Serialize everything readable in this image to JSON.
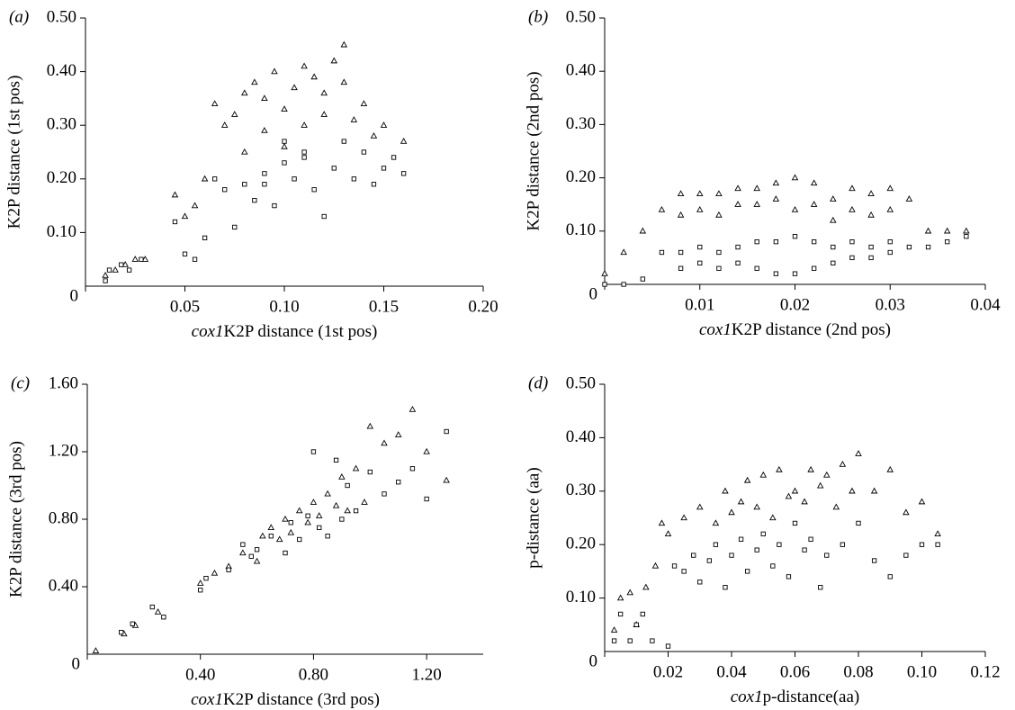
{
  "chart_data": [
    {
      "type": "scatter",
      "panel": "(a)",
      "xlabel_prefix": "cox1",
      "xlabel": "K2P distance (1st pos)",
      "ylabel": "K2P distance (1st pos)",
      "xlim": [
        0,
        0.2
      ],
      "ylim": [
        0,
        0.5
      ],
      "xticks": [
        0,
        0.05,
        {
          "value": 0.1,
          "label": "0.10"
        },
        0.15,
        {
          "value": 0.2,
          "label": "0.20"
        }
      ],
      "yticks": [
        {
          "value": 0.1,
          "label": "0.10"
        },
        {
          "value": 0.2,
          "label": "0.20"
        },
        {
          "value": 0.3,
          "label": "0.30"
        },
        {
          "value": 0.4,
          "label": "0.40"
        },
        {
          "value": 0.5,
          "label": "0.50"
        }
      ],
      "series": [
        {
          "marker": "triangle",
          "color": "#000000",
          "x": [
            0.01,
            0.015,
            0.02,
            0.025,
            0.03,
            0.045,
            0.05,
            0.055,
            0.06,
            0.065,
            0.07,
            0.075,
            0.08,
            0.085,
            0.09,
            0.095,
            0.1,
            0.105,
            0.11,
            0.115,
            0.12,
            0.125,
            0.13,
            0.135,
            0.14,
            0.145,
            0.15,
            0.16,
            0.09,
            0.1,
            0.11,
            0.12,
            0.08,
            0.13
          ],
          "values": [
            0.02,
            0.03,
            0.04,
            0.05,
            0.05,
            0.17,
            0.13,
            0.15,
            0.2,
            0.34,
            0.3,
            0.32,
            0.36,
            0.38,
            0.35,
            0.4,
            0.33,
            0.37,
            0.41,
            0.39,
            0.36,
            0.42,
            0.45,
            0.31,
            0.34,
            0.28,
            0.3,
            0.27,
            0.29,
            0.26,
            0.3,
            0.32,
            0.25,
            0.38
          ]
        },
        {
          "marker": "square",
          "color": "#000000",
          "x": [
            0.01,
            0.012,
            0.018,
            0.022,
            0.028,
            0.045,
            0.05,
            0.055,
            0.06,
            0.065,
            0.07,
            0.075,
            0.08,
            0.085,
            0.09,
            0.095,
            0.1,
            0.105,
            0.11,
            0.115,
            0.12,
            0.125,
            0.13,
            0.135,
            0.14,
            0.145,
            0.15,
            0.155,
            0.16,
            0.1,
            0.09,
            0.11
          ],
          "values": [
            0.01,
            0.03,
            0.04,
            0.03,
            0.05,
            0.12,
            0.06,
            0.05,
            0.09,
            0.2,
            0.18,
            0.11,
            0.19,
            0.16,
            0.21,
            0.15,
            0.23,
            0.2,
            0.25,
            0.18,
            0.13,
            0.22,
            0.27,
            0.2,
            0.25,
            0.19,
            0.22,
            0.24,
            0.21,
            0.27,
            0.19,
            0.24
          ]
        }
      ]
    },
    {
      "type": "scatter",
      "panel": "(b)",
      "xlabel_prefix": "cox1",
      "xlabel": "K2P distance (2nd pos)",
      "ylabel": "K2P distance (2nd pos)",
      "xlim": [
        0,
        0.04
      ],
      "ylim": [
        0,
        0.5
      ],
      "xticks": [
        0,
        0.01,
        0.02,
        0.03,
        0.04
      ],
      "yticks": [
        {
          "value": 0.1,
          "label": "0.10"
        },
        {
          "value": 0.2,
          "label": "0.20"
        },
        {
          "value": 0.3,
          "label": "0.30"
        },
        {
          "value": 0.4,
          "label": "0.40"
        },
        {
          "value": 0.5,
          "label": "0.50"
        }
      ],
      "series": [
        {
          "marker": "triangle",
          "color": "#000000",
          "x": [
            0,
            0.002,
            0.004,
            0.006,
            0.008,
            0.01,
            0.012,
            0.014,
            0.016,
            0.018,
            0.02,
            0.022,
            0.024,
            0.026,
            0.028,
            0.03,
            0.032,
            0.034,
            0.036,
            0.038,
            0.008,
            0.01,
            0.012,
            0.014,
            0.016,
            0.018,
            0.02,
            0.022,
            0.024,
            0.026,
            0.028,
            0.03
          ],
          "values": [
            0.02,
            0.06,
            0.1,
            0.14,
            0.17,
            0.17,
            0.17,
            0.18,
            0.18,
            0.19,
            0.2,
            0.19,
            0.16,
            0.18,
            0.17,
            0.18,
            0.16,
            0.1,
            0.1,
            0.1,
            0.13,
            0.14,
            0.13,
            0.15,
            0.15,
            0.16,
            0.14,
            0.15,
            0.12,
            0.14,
            0.13,
            0.14
          ]
        },
        {
          "marker": "square",
          "color": "#000000",
          "x": [
            0,
            0.002,
            0.004,
            0.006,
            0.008,
            0.01,
            0.012,
            0.014,
            0.016,
            0.018,
            0.02,
            0.022,
            0.024,
            0.026,
            0.028,
            0.03,
            0.032,
            0.034,
            0.036,
            0.038,
            0.008,
            0.01,
            0.012,
            0.014,
            0.016,
            0.018,
            0.02,
            0.022,
            0.024,
            0.026,
            0.028,
            0.03
          ],
          "values": [
            0,
            0,
            0.01,
            0.06,
            0.06,
            0.07,
            0.06,
            0.07,
            0.08,
            0.08,
            0.09,
            0.08,
            0.07,
            0.08,
            0.07,
            0.08,
            0.07,
            0.07,
            0.08,
            0.09,
            0.03,
            0.04,
            0.03,
            0.04,
            0.03,
            0.02,
            0.02,
            0.03,
            0.04,
            0.05,
            0.05,
            0.06
          ]
        }
      ]
    },
    {
      "type": "scatter",
      "panel": "(c)",
      "xlabel_prefix": "cox1",
      "xlabel": "K2P distance (3rd pos)",
      "ylabel": "K2P distance (3rd pos)",
      "xlim": [
        0,
        1.4
      ],
      "ylim": [
        0,
        1.6
      ],
      "xticks": [
        0,
        {
          "value": 0.4,
          "label": "0.40"
        },
        {
          "value": 0.8,
          "label": "0.80"
        },
        {
          "value": 1.2,
          "label": "1.20"
        }
      ],
      "yticks": [
        {
          "value": 0.4,
          "label": "0.40"
        },
        {
          "value": 0.8,
          "label": "0.80"
        },
        {
          "value": 1.2,
          "label": "1.20"
        },
        {
          "value": 1.6,
          "label": "1.60"
        }
      ],
      "series": [
        {
          "marker": "triangle",
          "color": "#000000",
          "x": [
            0.03,
            0.13,
            0.17,
            0.25,
            0.4,
            0.45,
            0.5,
            0.55,
            0.6,
            0.62,
            0.65,
            0.68,
            0.7,
            0.72,
            0.75,
            0.78,
            0.8,
            0.82,
            0.85,
            0.88,
            0.9,
            0.92,
            0.95,
            0.98,
            1.0,
            1.05,
            1.1,
            1.15,
            1.2,
            1.27
          ],
          "values": [
            0.02,
            0.12,
            0.17,
            0.25,
            0.42,
            0.48,
            0.52,
            0.6,
            0.55,
            0.7,
            0.75,
            0.68,
            0.8,
            0.72,
            0.85,
            0.78,
            0.9,
            0.82,
            0.95,
            0.88,
            1.05,
            0.85,
            1.1,
            0.9,
            1.35,
            1.25,
            1.3,
            1.45,
            1.2,
            1.03
          ]
        },
        {
          "marker": "square",
          "color": "#000000",
          "x": [
            0.12,
            0.16,
            0.23,
            0.27,
            0.4,
            0.42,
            0.5,
            0.55,
            0.58,
            0.6,
            0.65,
            0.7,
            0.72,
            0.75,
            0.78,
            0.8,
            0.82,
            0.85,
            0.88,
            0.9,
            0.92,
            0.95,
            1.0,
            1.05,
            1.1,
            1.15,
            1.2,
            1.27
          ],
          "values": [
            0.13,
            0.18,
            0.28,
            0.22,
            0.38,
            0.45,
            0.5,
            0.65,
            0.58,
            0.62,
            0.7,
            0.6,
            0.78,
            0.68,
            0.82,
            1.2,
            0.75,
            0.7,
            1.15,
            0.8,
            1.0,
            0.85,
            1.08,
            0.95,
            1.02,
            1.1,
            0.92,
            1.32
          ]
        }
      ]
    },
    {
      "type": "scatter",
      "panel": "(d)",
      "xlabel_prefix": "cox1",
      "xlabel": "p-distance(aa)",
      "ylabel": "p-distance (aa)",
      "xlim": [
        0,
        0.12
      ],
      "ylim": [
        0,
        0.5
      ],
      "xticks": [
        0,
        0.02,
        0.04,
        0.06,
        0.08,
        {
          "value": 0.1,
          "label": "0.10"
        },
        0.12
      ],
      "yticks": [
        {
          "value": 0.1,
          "label": "0.10"
        },
        {
          "value": 0.2,
          "label": "0.20"
        },
        {
          "value": 0.3,
          "label": "0.30"
        },
        {
          "value": 0.4,
          "label": "0.40"
        },
        {
          "value": 0.5,
          "label": "0.50"
        }
      ],
      "series": [
        {
          "marker": "triangle",
          "color": "#000000",
          "x": [
            0.003,
            0.005,
            0.008,
            0.01,
            0.013,
            0.016,
            0.018,
            0.02,
            0.025,
            0.03,
            0.035,
            0.038,
            0.04,
            0.043,
            0.045,
            0.048,
            0.05,
            0.053,
            0.055,
            0.058,
            0.06,
            0.063,
            0.065,
            0.068,
            0.07,
            0.073,
            0.075,
            0.078,
            0.08,
            0.085,
            0.09,
            0.095,
            0.1,
            0.105
          ],
          "values": [
            0.04,
            0.1,
            0.11,
            0.05,
            0.12,
            0.16,
            0.24,
            0.22,
            0.25,
            0.27,
            0.24,
            0.3,
            0.26,
            0.28,
            0.32,
            0.27,
            0.33,
            0.25,
            0.34,
            0.29,
            0.3,
            0.28,
            0.34,
            0.31,
            0.33,
            0.27,
            0.35,
            0.3,
            0.37,
            0.3,
            0.34,
            0.26,
            0.28,
            0.22
          ]
        },
        {
          "marker": "square",
          "color": "#000000",
          "x": [
            0.003,
            0.005,
            0.008,
            0.01,
            0.012,
            0.015,
            0.02,
            0.022,
            0.025,
            0.028,
            0.03,
            0.033,
            0.035,
            0.038,
            0.04,
            0.043,
            0.045,
            0.048,
            0.05,
            0.053,
            0.055,
            0.058,
            0.06,
            0.063,
            0.065,
            0.068,
            0.07,
            0.075,
            0.08,
            0.085,
            0.09,
            0.095,
            0.1,
            0.105
          ],
          "values": [
            0.02,
            0.07,
            0.02,
            0.05,
            0.07,
            0.02,
            0.01,
            0.16,
            0.15,
            0.18,
            0.13,
            0.17,
            0.2,
            0.12,
            0.18,
            0.21,
            0.15,
            0.19,
            0.22,
            0.16,
            0.2,
            0.14,
            0.24,
            0.19,
            0.21,
            0.12,
            0.18,
            0.2,
            0.24,
            0.17,
            0.14,
            0.18,
            0.2,
            0.2
          ]
        }
      ]
    }
  ]
}
